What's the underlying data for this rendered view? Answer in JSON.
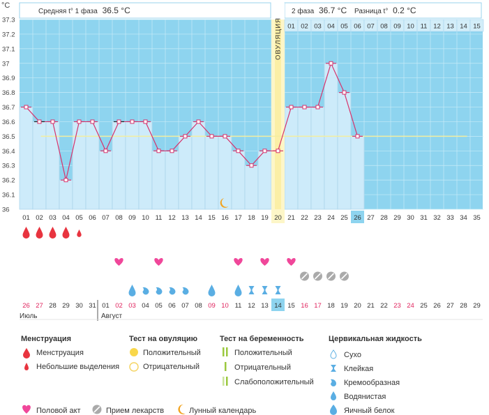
{
  "header": {
    "unit": "°C",
    "phase1_label": "Средняя t° 1 фаза",
    "phase1_value": "36.5 °C",
    "phase2_label": "2 фаза",
    "phase2_value": "36.7 °C",
    "diff_label": "Разница t°",
    "diff_value": "0.2 °C",
    "ovulation_label": "ОВУЛЯЦИЯ"
  },
  "colors": {
    "chart_bg": "#8ed4ef",
    "bar_fill": "#cdebfa",
    "bar_stroke": "#a8d3ea",
    "ovulation_band": "#fdf6c8",
    "line": "#d6336c",
    "coverline": "#f3eea0",
    "menstruation": "#e8343f",
    "heart": "#f0479a",
    "medicine": "#aaaaaa",
    "fluid": "#5aaee3",
    "red_date": "#e0245e",
    "today_bg": "#8ed4ef"
  },
  "chart_data": {
    "type": "line",
    "ylim": [
      36.0,
      37.3
    ],
    "yticks": [
      "36",
      "36.1",
      "36.2",
      "36.3",
      "36.4",
      "36.5",
      "36.6",
      "36.7",
      "36.8",
      "36.9",
      "37",
      "37.1",
      "37.2",
      "37.3"
    ],
    "coverline": 36.5,
    "ovulation_day": 20,
    "x": [
      1,
      2,
      3,
      4,
      5,
      6,
      7,
      8,
      9,
      10,
      11,
      12,
      13,
      14,
      15,
      16,
      17,
      18,
      19,
      20,
      21,
      22,
      23,
      24,
      25,
      26
    ],
    "values": [
      36.7,
      36.6,
      36.6,
      36.2,
      36.6,
      36.6,
      36.4,
      36.6,
      36.6,
      36.6,
      36.4,
      36.4,
      36.5,
      36.6,
      36.5,
      36.5,
      36.4,
      36.3,
      36.4,
      36.4,
      36.7,
      36.7,
      36.7,
      37.0,
      36.8,
      36.5
    ],
    "marked_days": [
      2,
      8
    ],
    "cycle_days": [
      "01",
      "02",
      "03",
      "04",
      "05",
      "06",
      "07",
      "08",
      "09",
      "10",
      "11",
      "12",
      "13",
      "14",
      "15",
      "16",
      "17",
      "18",
      "19",
      "20",
      "21",
      "22",
      "23",
      "24",
      "25",
      "26",
      "27",
      "28",
      "29",
      "30",
      "31",
      "32",
      "33",
      "34",
      "35"
    ],
    "post_ovulation_days": [
      "01",
      "02",
      "03",
      "04",
      "05",
      "06",
      "07",
      "08",
      "09",
      "10",
      "11",
      "12",
      "13",
      "14",
      "15"
    ],
    "current_day": 26,
    "calendar_dates": [
      "26",
      "27",
      "28",
      "29",
      "30",
      "31",
      "01",
      "02",
      "03",
      "04",
      "05",
      "06",
      "07",
      "08",
      "09",
      "10",
      "11",
      "12",
      "13",
      "14",
      "15",
      "16",
      "17",
      "18",
      "19",
      "20",
      "21",
      "22",
      "23",
      "24",
      "25",
      "26",
      "27",
      "28",
      "29"
    ],
    "red_dates": [
      1,
      2,
      8,
      9,
      15,
      16,
      22,
      23,
      29,
      30
    ],
    "today_date_index": 20,
    "months": [
      "Июль",
      "Август"
    ],
    "menstruation_days": [
      1,
      2,
      3,
      4
    ],
    "light_spotting_days": [
      5
    ],
    "intercourse_days": [
      8,
      11,
      17,
      19,
      21
    ],
    "medicine_days": [
      22,
      23,
      24,
      25
    ],
    "moon_day": 16,
    "fluid": {
      "eggwhite": [
        9,
        15,
        17
      ],
      "watery": [
        10,
        11,
        12,
        13
      ],
      "sticky": [
        18,
        19,
        20
      ]
    }
  },
  "legend": {
    "menstruation": {
      "title": "Менструация",
      "items": [
        "Менструация",
        "Небольшие выделения"
      ]
    },
    "ovulation_test": {
      "title": "Тест на овуляцию",
      "items": [
        "Положительный",
        "Отрицательный"
      ]
    },
    "pregnancy_test": {
      "title": "Тест на беременность",
      "items": [
        "Положительный",
        "Отрицательный",
        "Слабоположительный"
      ]
    },
    "cervical_fluid": {
      "title": "Цервикальная жидкость",
      "items": [
        "Сухо",
        "Клейкая",
        "Кремообразная",
        "Водянистая",
        "Яичный белок"
      ]
    },
    "bottom": [
      "Половой акт",
      "Прием лекарств",
      "Лунный календарь"
    ]
  }
}
